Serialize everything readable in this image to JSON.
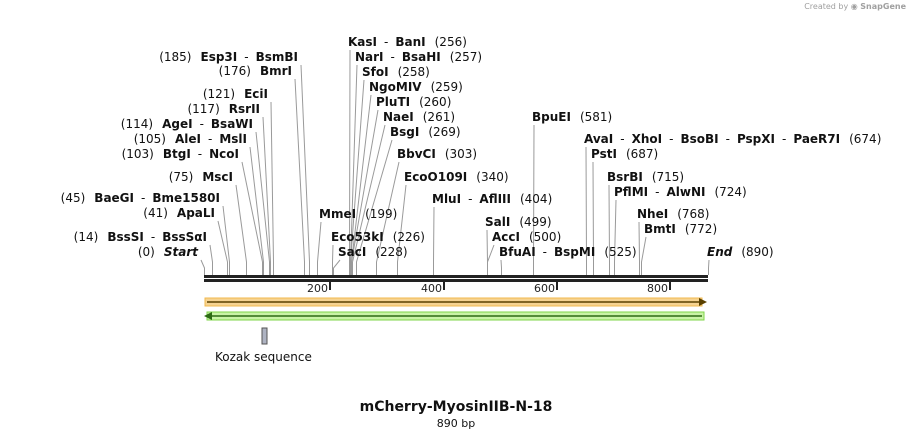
{
  "credit": {
    "prefix": "Created by",
    "brand": "SnapGene"
  },
  "title": "mCherry-MyosinIIB-N-18",
  "subtitle": "890 bp",
  "ruler": {
    "total_bp": 890,
    "ticks": [
      {
        "bp": 200,
        "label": "200"
      },
      {
        "bp": 400,
        "label": "400"
      },
      {
        "bp": 600,
        "label": "600"
      },
      {
        "bp": 800,
        "label": "800"
      }
    ]
  },
  "features": [
    {
      "name": "Kozak sequence",
      "start": 103,
      "end": 112
    }
  ],
  "labels": [
    {
      "parts": [
        {
          "t": "(0)",
          "k": "pos"
        },
        {
          "t": "Start",
          "k": "start"
        }
      ],
      "bp": 0
    },
    {
      "parts": [
        {
          "t": "End",
          "k": "start"
        },
        {
          "t": "(890)",
          "k": "pos"
        }
      ],
      "bp": 890
    },
    {
      "parts": [
        {
          "t": "(14)",
          "k": "pos"
        },
        {
          "t": "BssSI",
          "k": "ez"
        },
        {
          "t": "-",
          "k": "sep"
        },
        {
          "t": "BssSαI",
          "k": "ez"
        }
      ],
      "bp": 14
    },
    {
      "parts": [
        {
          "t": "(41)",
          "k": "pos"
        },
        {
          "t": "ApaLI",
          "k": "ez"
        }
      ],
      "bp": 41
    },
    {
      "parts": [
        {
          "t": "(45)",
          "k": "pos"
        },
        {
          "t": "BaeGI",
          "k": "ez"
        },
        {
          "t": "-",
          "k": "sep"
        },
        {
          "t": "Bme1580I",
          "k": "ez"
        }
      ],
      "bp": 45
    },
    {
      "parts": [
        {
          "t": "(75)",
          "k": "pos"
        },
        {
          "t": "MscI",
          "k": "ez"
        }
      ],
      "bp": 75
    },
    {
      "parts": [
        {
          "t": "(103)",
          "k": "pos"
        },
        {
          "t": "BtgI",
          "k": "ez"
        },
        {
          "t": "-",
          "k": "sep"
        },
        {
          "t": "NcoI",
          "k": "ez"
        }
      ],
      "bp": 103
    },
    {
      "parts": [
        {
          "t": "(105)",
          "k": "pos"
        },
        {
          "t": "AleI",
          "k": "ez"
        },
        {
          "t": "-",
          "k": "sep"
        },
        {
          "t": "MslI",
          "k": "ez"
        }
      ],
      "bp": 105
    },
    {
      "parts": [
        {
          "t": "(114)",
          "k": "pos"
        },
        {
          "t": "AgeI",
          "k": "ez"
        },
        {
          "t": "-",
          "k": "sep"
        },
        {
          "t": "BsaWI",
          "k": "ez"
        }
      ],
      "bp": 114
    },
    {
      "parts": [
        {
          "t": "(117)",
          "k": "pos"
        },
        {
          "t": "RsrII",
          "k": "ez"
        }
      ],
      "bp": 117
    },
    {
      "parts": [
        {
          "t": "(121)",
          "k": "pos"
        },
        {
          "t": "EciI",
          "k": "ez"
        }
      ],
      "bp": 121
    },
    {
      "parts": [
        {
          "t": "(176)",
          "k": "pos"
        },
        {
          "t": "BmrI",
          "k": "ez"
        }
      ],
      "bp": 176
    },
    {
      "parts": [
        {
          "t": "(185)",
          "k": "pos"
        },
        {
          "t": "Esp3I",
          "k": "ez"
        },
        {
          "t": "-",
          "k": "sep"
        },
        {
          "t": "BsmBI",
          "k": "ez"
        }
      ],
      "bp": 185
    },
    {
      "parts": [
        {
          "t": "MmeI",
          "k": "ez"
        },
        {
          "t": "(199)",
          "k": "pos"
        }
      ],
      "bp": 199
    },
    {
      "parts": [
        {
          "t": "Eco53kI",
          "k": "ez"
        },
        {
          "t": "(226)",
          "k": "pos"
        }
      ],
      "bp": 226
    },
    {
      "parts": [
        {
          "t": "SacI",
          "k": "ez"
        },
        {
          "t": "(228)",
          "k": "pos"
        }
      ],
      "bp": 228
    },
    {
      "parts": [
        {
          "t": "KasI",
          "k": "ez"
        },
        {
          "t": "-",
          "k": "sep"
        },
        {
          "t": "BanI",
          "k": "ez"
        },
        {
          "t": "(256)",
          "k": "pos"
        }
      ],
      "bp": 256
    },
    {
      "parts": [
        {
          "t": "NarI",
          "k": "ez"
        },
        {
          "t": "-",
          "k": "sep"
        },
        {
          "t": "BsaHI",
          "k": "ez"
        },
        {
          "t": "(257)",
          "k": "pos"
        }
      ],
      "bp": 257
    },
    {
      "parts": [
        {
          "t": "SfoI",
          "k": "ez"
        },
        {
          "t": "(258)",
          "k": "pos"
        }
      ],
      "bp": 258
    },
    {
      "parts": [
        {
          "t": "NgoMIV",
          "k": "ez"
        },
        {
          "t": "(259)",
          "k": "pos"
        }
      ],
      "bp": 259
    },
    {
      "parts": [
        {
          "t": "PluTI",
          "k": "ez"
        },
        {
          "t": "(260)",
          "k": "pos"
        }
      ],
      "bp": 260
    },
    {
      "parts": [
        {
          "t": "NaeI",
          "k": "ez"
        },
        {
          "t": "(261)",
          "k": "pos"
        }
      ],
      "bp": 261
    },
    {
      "parts": [
        {
          "t": "BsgI",
          "k": "ez"
        },
        {
          "t": "(269)",
          "k": "pos"
        }
      ],
      "bp": 269
    },
    {
      "parts": [
        {
          "t": "BbvCI",
          "k": "ez"
        },
        {
          "t": "(303)",
          "k": "pos"
        }
      ],
      "bp": 303
    },
    {
      "parts": [
        {
          "t": "EcoO109I",
          "k": "ez"
        },
        {
          "t": "(340)",
          "k": "pos"
        }
      ],
      "bp": 340
    },
    {
      "parts": [
        {
          "t": "MluI",
          "k": "ez"
        },
        {
          "t": "-",
          "k": "sep"
        },
        {
          "t": "AflIII",
          "k": "ez"
        },
        {
          "t": "(404)",
          "k": "pos"
        }
      ],
      "bp": 404
    },
    {
      "parts": [
        {
          "t": "SalI",
          "k": "ez"
        },
        {
          "t": "(499)",
          "k": "pos"
        }
      ],
      "bp": 499
    },
    {
      "parts": [
        {
          "t": "AccI",
          "k": "ez"
        },
        {
          "t": "(500)",
          "k": "pos"
        }
      ],
      "bp": 500
    },
    {
      "parts": [
        {
          "t": "BfuAI",
          "k": "ez"
        },
        {
          "t": "-",
          "k": "sep"
        },
        {
          "t": "BspMI",
          "k": "ez"
        },
        {
          "t": "(525)",
          "k": "pos"
        }
      ],
      "bp": 525
    },
    {
      "parts": [
        {
          "t": "BpuEI",
          "k": "ez"
        },
        {
          "t": "(581)",
          "k": "pos"
        }
      ],
      "bp": 581
    },
    {
      "parts": [
        {
          "t": "AvaI",
          "k": "ez"
        },
        {
          "t": "-",
          "k": "sep"
        },
        {
          "t": "XhoI",
          "k": "ez"
        },
        {
          "t": "-",
          "k": "sep"
        },
        {
          "t": "BsoBI",
          "k": "ez"
        },
        {
          "t": "-",
          "k": "sep"
        },
        {
          "t": "PspXI",
          "k": "ez"
        },
        {
          "t": "-",
          "k": "sep"
        },
        {
          "t": "PaeR7I",
          "k": "ez"
        },
        {
          "t": "(674)",
          "k": "pos"
        }
      ],
      "bp": 674
    },
    {
      "parts": [
        {
          "t": "PstI",
          "k": "ez"
        },
        {
          "t": "(687)",
          "k": "pos"
        }
      ],
      "bp": 687
    },
    {
      "parts": [
        {
          "t": "BsrBI",
          "k": "ez"
        },
        {
          "t": "(715)",
          "k": "pos"
        }
      ],
      "bp": 715
    },
    {
      "parts": [
        {
          "t": "PflMI",
          "k": "ez"
        },
        {
          "t": "-",
          "k": "sep"
        },
        {
          "t": "AlwNI",
          "k": "ez"
        },
        {
          "t": "(724)",
          "k": "pos"
        }
      ],
      "bp": 724
    },
    {
      "parts": [
        {
          "t": "NheI",
          "k": "ez"
        },
        {
          "t": "(768)",
          "k": "pos"
        }
      ],
      "bp": 768
    },
    {
      "parts": [
        {
          "t": "BmtI",
          "k": "ez"
        },
        {
          "t": "(772)",
          "k": "pos"
        }
      ],
      "bp": 772
    }
  ]
}
